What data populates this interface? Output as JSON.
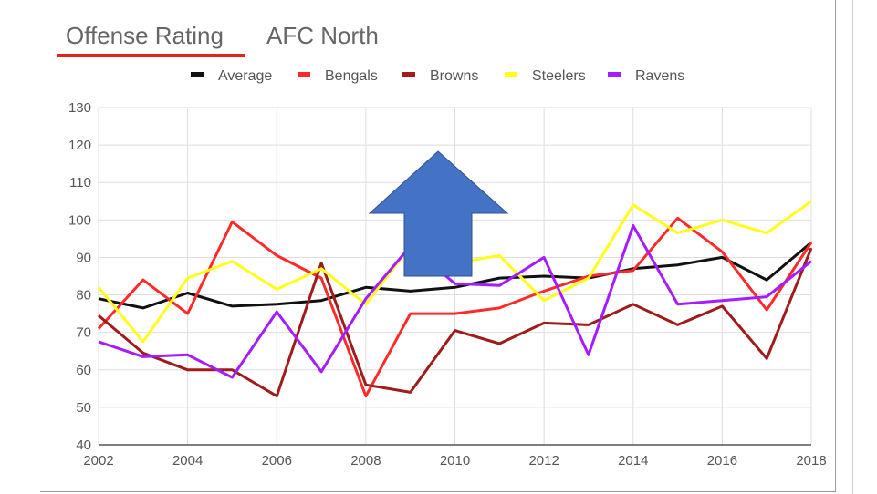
{
  "tabs": [
    {
      "label": "Offense Rating",
      "active": true
    },
    {
      "label": "AFC North",
      "active": false
    }
  ],
  "colors": {
    "tab_underline": "#e2231a",
    "arrow": "#4472c4"
  },
  "chart_data": {
    "type": "line",
    "x": [
      2002,
      2003,
      2004,
      2005,
      2006,
      2007,
      2008,
      2009,
      2010,
      2011,
      2012,
      2013,
      2014,
      2015,
      2016,
      2017,
      2018
    ],
    "xticks": [
      "2002",
      "2004",
      "2006",
      "2008",
      "2010",
      "2012",
      "2014",
      "2016",
      "2018"
    ],
    "yticks": [
      "40",
      "50",
      "60",
      "70",
      "80",
      "90",
      "100",
      "110",
      "120",
      "130"
    ],
    "ylim": [
      40,
      130
    ],
    "xlim": [
      2002,
      2018
    ],
    "grid": true,
    "legend_position": "top",
    "series": [
      {
        "name": "Average",
        "color": "#111111",
        "values": [
          79,
          76.5,
          80.5,
          77,
          77.5,
          78.5,
          82,
          81,
          82,
          84.5,
          85,
          84.5,
          87,
          88,
          90,
          84,
          94
        ]
      },
      {
        "name": "Bengals",
        "color": "#ff2a2a",
        "values": [
          71,
          84,
          75,
          99.5,
          90.5,
          84.5,
          53,
          75,
          75,
          76.5,
          81,
          85,
          86.5,
          100.5,
          91.5,
          76,
          94
        ]
      },
      {
        "name": "Browns",
        "color": "#a01c1c",
        "values": [
          74.5,
          64.5,
          60,
          60,
          53,
          88.5,
          56,
          54,
          70.5,
          67,
          72.5,
          72,
          77.5,
          72,
          77,
          63,
          92.5
        ]
      },
      {
        "name": "Steelers",
        "color": "#ffff1a",
        "values": [
          82,
          67.5,
          84.5,
          89,
          81.5,
          87,
          77.5,
          93,
          88.5,
          90.5,
          78.5,
          84.5,
          104,
          96.5,
          100,
          96.5,
          105
        ]
      },
      {
        "name": "Ravens",
        "color": "#a61bff",
        "values": [
          67.5,
          63.5,
          64,
          58,
          75.5,
          59.5,
          79,
          93,
          83,
          82.5,
          90,
          64,
          98.5,
          77.5,
          78.5,
          79.5,
          89
        ]
      }
    ]
  }
}
